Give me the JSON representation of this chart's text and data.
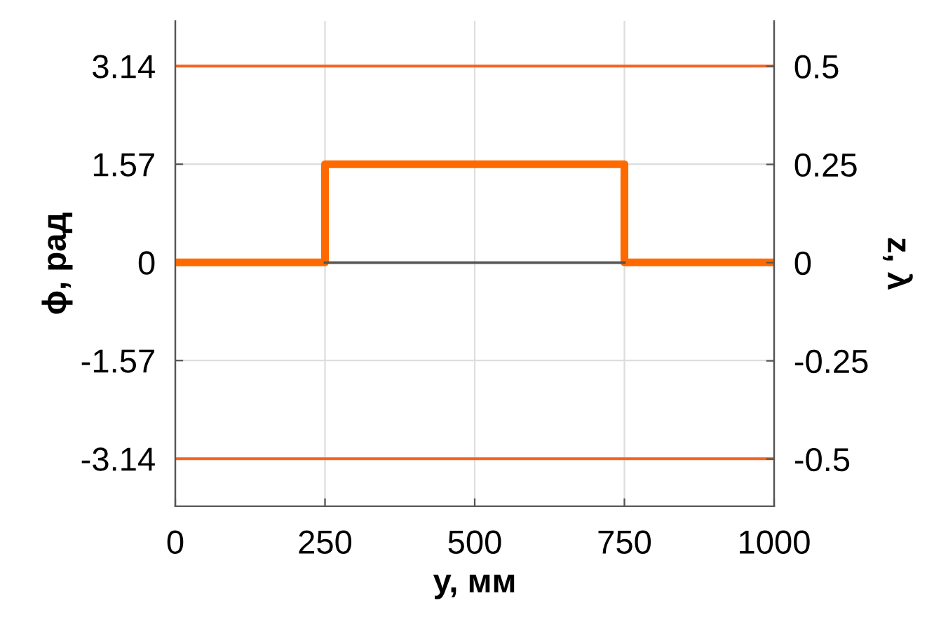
{
  "chart_data": {
    "type": "line",
    "xlabel": "y, мм",
    "ylabel": "ϕ, рад",
    "y2label": "z, λ",
    "xlim": [
      0,
      1000
    ],
    "xticks": [
      0,
      250,
      500,
      750,
      1000
    ],
    "ylim": [
      -3.9,
      3.86
    ],
    "yticks": [
      -3.14,
      -1.57,
      0,
      1.57,
      3.14
    ],
    "y2lim": [
      -0.62,
      0.615
    ],
    "y2ticks": [
      -0.5,
      -0.25,
      0,
      0.25,
      0.5
    ],
    "grid": true,
    "marker": "none",
    "line_style": "solid",
    "series": [
      {
        "type": "line",
        "axis": "y2",
        "color": "#555555",
        "x": [
          250,
          750
        ],
        "values": [
          0,
          0
        ]
      },
      {
        "type": "line",
        "color": "#f26522",
        "x": [
          0,
          1000
        ],
        "values": [
          3.14,
          3.14
        ]
      },
      {
        "type": "line",
        "color": "#f26522",
        "x": [
          0,
          1000
        ],
        "values": [
          -3.14,
          -3.14
        ]
      },
      {
        "type": "step",
        "color": "#ff6a00",
        "x": [
          0,
          250,
          750,
          1000
        ],
        "values": [
          0,
          1.57,
          0,
          0
        ]
      }
    ]
  }
}
